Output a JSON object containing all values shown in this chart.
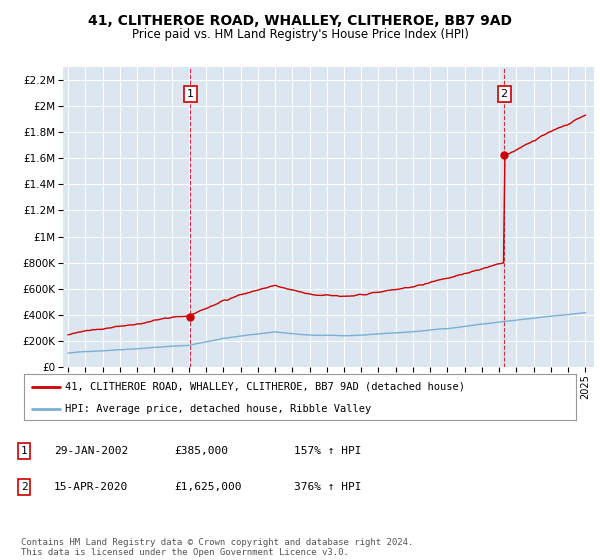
{
  "title1": "41, CLITHEROE ROAD, WHALLEY, CLITHEROE, BB7 9AD",
  "title2": "Price paid vs. HM Land Registry's House Price Index (HPI)",
  "background_color": "#dce6f1",
  "plot_bg_color": "#dce6f1",
  "fig_bg_color": "#ffffff",
  "ylim": [
    0,
    2300000
  ],
  "yticks": [
    0,
    200000,
    400000,
    600000,
    800000,
    1000000,
    1200000,
    1400000,
    1600000,
    1800000,
    2000000,
    2200000
  ],
  "ytick_labels": [
    "£0",
    "£200K",
    "£400K",
    "£600K",
    "£800K",
    "£1M",
    "£1.2M",
    "£1.4M",
    "£1.6M",
    "£1.8M",
    "£2M",
    "£2.2M"
  ],
  "xlim_start": 1994.7,
  "xlim_end": 2025.5,
  "xticks": [
    1995,
    1996,
    1997,
    1998,
    1999,
    2000,
    2001,
    2002,
    2003,
    2004,
    2005,
    2006,
    2007,
    2008,
    2009,
    2010,
    2011,
    2012,
    2013,
    2014,
    2015,
    2016,
    2017,
    2018,
    2019,
    2020,
    2021,
    2022,
    2023,
    2024,
    2025
  ],
  "marker1_x": 2002.08,
  "marker1_y": 385000,
  "marker1_label": "1",
  "marker2_x": 2020.29,
  "marker2_y": 1625000,
  "marker2_label": "2",
  "red_line_color": "#cc0000",
  "blue_line_color": "#7bafd4",
  "legend_line1": "41, CLITHEROE ROAD, WHALLEY, CLITHEROE, BB7 9AD (detached house)",
  "legend_line2": "HPI: Average price, detached house, Ribble Valley",
  "table_entries": [
    {
      "num": "1",
      "date": "29-JAN-2002",
      "price": "£385,000",
      "hpi": "157% ↑ HPI"
    },
    {
      "num": "2",
      "date": "15-APR-2020",
      "price": "£1,625,000",
      "hpi": "376% ↑ HPI"
    }
  ],
  "footnote": "Contains HM Land Registry data © Crown copyright and database right 2024.\nThis data is licensed under the Open Government Licence v3.0."
}
